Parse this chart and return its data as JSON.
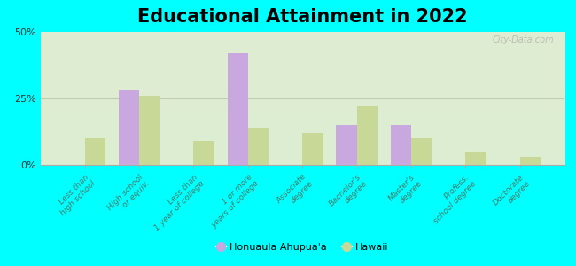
{
  "title": "Educational Attainment in 2022",
  "categories": [
    "Less than\nhigh school",
    "High school\nor equiv.",
    "Less than\n1 year of college",
    "1 or more\nyears of college",
    "Associate\ndegree",
    "Bachelor's\ndegree",
    "Master's\ndegree",
    "Profess.\nschool degree",
    "Doctorate\ndegree"
  ],
  "honuaula_values": [
    0,
    28,
    0,
    42,
    0,
    15,
    15,
    0,
    0
  ],
  "hawaii_values": [
    10,
    26,
    9,
    14,
    12,
    22,
    10,
    5,
    3
  ],
  "honuaula_color": "#c9a8e0",
  "hawaii_color": "#c8d896",
  "background_color": "#00ffff",
  "plot_bg_color": "#eef3e2",
  "ylim": [
    0,
    50
  ],
  "yticks": [
    0,
    25,
    50
  ],
  "ytick_labels": [
    "0%",
    "25%",
    "50%"
  ],
  "legend_label1": "Honuaula Ahupua'a",
  "legend_label2": "Hawaii",
  "watermark": "City-Data.com",
  "title_fontsize": 15,
  "label_fontsize": 6.5,
  "bar_width": 0.38,
  "tick_color": "#4a7a6a",
  "grid_color": "#c0ccb0"
}
